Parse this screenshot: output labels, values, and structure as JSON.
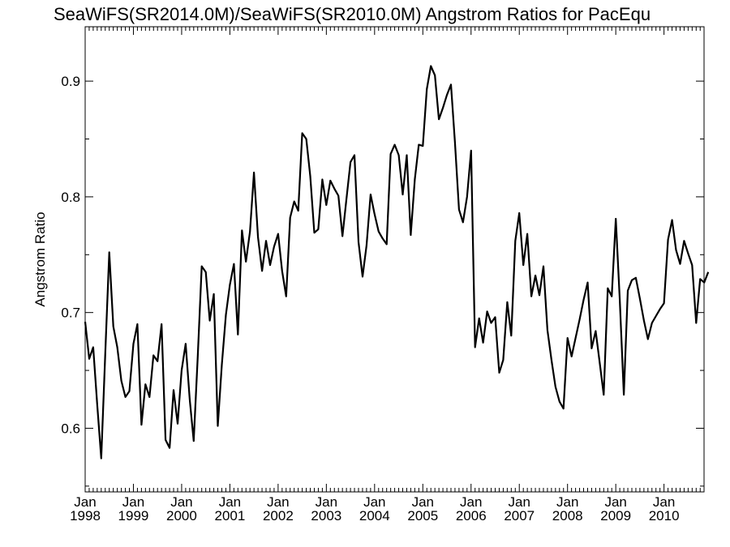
{
  "chart_data": {
    "type": "line",
    "title": "SeaWiFS(SR2014.0M)/SeaWiFS(SR2010.0M)  Angstrom Ratios for PacEqu",
    "xlabel": "",
    "ylabel": "Angstrom Ratio",
    "xlim": [
      1998.0,
      2010.83
    ],
    "ylim": [
      0.545,
      0.947
    ],
    "y_major_ticks": [
      0.6,
      0.7,
      0.8,
      0.9
    ],
    "y_tick_labels": [
      "0.6",
      "0.7",
      "0.8",
      "0.9"
    ],
    "x_major_ticks": [
      1998,
      1999,
      2000,
      2001,
      2002,
      2003,
      2004,
      2005,
      2006,
      2007,
      2008,
      2009,
      2010
    ],
    "x_tick_labels": [
      [
        "Jan",
        "1998"
      ],
      [
        "Jan",
        "1999"
      ],
      [
        "Jan",
        "2000"
      ],
      [
        "Jan",
        "2001"
      ],
      [
        "Jan",
        "2002"
      ],
      [
        "Jan",
        "2003"
      ],
      [
        "Jan",
        "2004"
      ],
      [
        "Jan",
        "2005"
      ],
      [
        "Jan",
        "2006"
      ],
      [
        "Jan",
        "2007"
      ],
      [
        "Jan",
        "2008"
      ],
      [
        "Jan",
        "2009"
      ],
      [
        "Jan",
        "2010"
      ]
    ],
    "grid": false,
    "line_color": "#000000",
    "series": [
      {
        "start": "1998-01",
        "interval": "month",
        "values": [
          0.692,
          0.66,
          0.67,
          0.62,
          0.574,
          0.665,
          0.752,
          0.688,
          0.67,
          0.641,
          0.627,
          0.632,
          0.673,
          0.69,
          0.603,
          0.638,
          0.627,
          0.663,
          0.658,
          0.69,
          0.59,
          0.583,
          0.633,
          0.604,
          0.65,
          0.673,
          0.625,
          0.589,
          0.662,
          0.74,
          0.735,
          0.693,
          0.716,
          0.602,
          0.655,
          0.698,
          0.724,
          0.742,
          0.681,
          0.771,
          0.744,
          0.77,
          0.821,
          0.765,
          0.736,
          0.762,
          0.741,
          0.757,
          0.768,
          0.736,
          0.714,
          0.782,
          0.796,
          0.788,
          0.855,
          0.85,
          0.818,
          0.769,
          0.772,
          0.815,
          0.793,
          0.814,
          0.807,
          0.801,
          0.766,
          0.798,
          0.83,
          0.836,
          0.761,
          0.731,
          0.758,
          0.802,
          0.785,
          0.77,
          0.764,
          0.759,
          0.837,
          0.845,
          0.836,
          0.802,
          0.836,
          0.767,
          0.815,
          0.845,
          0.844,
          0.893,
          0.913,
          0.905,
          0.867,
          0.877,
          0.888,
          0.897,
          0.847,
          0.789,
          0.778,
          0.8,
          0.84,
          0.67,
          0.695,
          0.674,
          0.701,
          0.691,
          0.696,
          0.648,
          0.659,
          0.709,
          0.68,
          0.762,
          0.786,
          0.741,
          0.768,
          0.714,
          0.732,
          0.715,
          0.74,
          0.685,
          0.659,
          0.636,
          0.623,
          0.617,
          0.678,
          0.662,
          0.678,
          0.694,
          0.711,
          0.726,
          0.669,
          0.684,
          0.657,
          0.629,
          0.721,
          0.714,
          0.781,
          0.711,
          0.629,
          0.719,
          0.728,
          0.73,
          0.712,
          0.693,
          0.677,
          0.691,
          0.697,
          0.703,
          0.708,
          0.763,
          0.78,
          0.754,
          0.742,
          0.762,
          0.751,
          0.741,
          0.691,
          0.729,
          0.726,
          0.735
        ]
      }
    ]
  }
}
